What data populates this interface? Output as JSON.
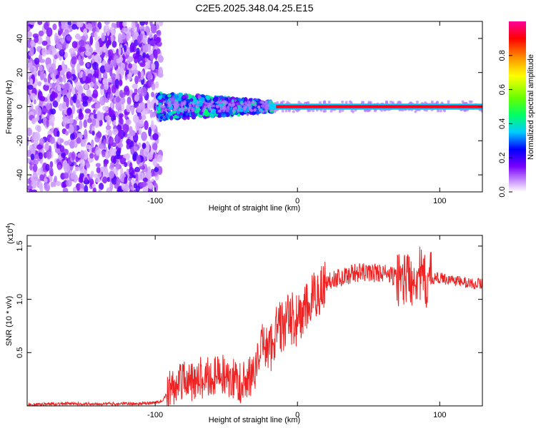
{
  "title": "C2E5.2025.348.04.25.E15",
  "chart_data": [
    {
      "type": "heatmap",
      "name": "spectrogram",
      "xlabel": "Height of straight line (km)",
      "ylabel": "Frequency (Hz)",
      "xlim": [
        -190,
        130
      ],
      "ylim": [
        -50,
        50
      ],
      "xticks": [
        -100,
        0,
        100
      ],
      "yticks": [
        -40,
        -20,
        0,
        20,
        40
      ],
      "tick_labels_x": [
        "-100",
        "0",
        "100"
      ],
      "tick_labels_y": [
        "-40",
        "-20",
        "0",
        "20",
        "40"
      ],
      "colorbar": {
        "label": "Normalized spectral amplitude",
        "range": [
          0,
          1
        ],
        "ticks": [
          "0.0",
          "0.2",
          "0.4",
          "0.6",
          "0.8"
        ],
        "colors": [
          "#ffffff",
          "#cc99ff",
          "#7700ff",
          "#0000ff",
          "#00ccff",
          "#00ff66",
          "#66ff00",
          "#ffff00",
          "#ff9900",
          "#ff0000",
          "#ff0099"
        ]
      },
      "regions": [
        {
          "x": [
            -190,
            -96
          ],
          "freq": [
            -50,
            50
          ],
          "level": "low",
          "description_value": 0.1
        },
        {
          "x": [
            -96,
            -20
          ],
          "freq": [
            -8,
            8
          ],
          "level": "mid",
          "description_value": 0.3
        },
        {
          "x": [
            -20,
            130
          ],
          "freq": [
            -1.5,
            1.5
          ],
          "level": "high",
          "description_value": 0.95
        }
      ]
    },
    {
      "type": "line",
      "name": "snr",
      "xlabel": "Height of straight line (km)",
      "ylabel": "SNR (10 * v/v)",
      "multiplier_label": "(x10",
      "multiplier_exp": "4",
      "multiplier_close": ")",
      "xlim": [
        -190,
        130
      ],
      "ylim": [
        0,
        1.6
      ],
      "xticks": [
        -100,
        0,
        100
      ],
      "yticks": [
        0.5,
        1.0,
        1.5
      ],
      "tick_labels_x": [
        "-100",
        "0",
        "100"
      ],
      "tick_labels_y": [
        "0.5",
        "1.0",
        "1.5"
      ],
      "color": "#ee2222",
      "series": [
        {
          "name": "SNR",
          "x": [
            -190,
            -170,
            -150,
            -130,
            -110,
            -100,
            -95,
            -90,
            -85,
            -80,
            -75,
            -70,
            -65,
            -60,
            -55,
            -50,
            -45,
            -40,
            -35,
            -30,
            -25,
            -22,
            -20,
            -15,
            -10,
            -5,
            0,
            5,
            10,
            15,
            20,
            25,
            30,
            40,
            50,
            60,
            70,
            80,
            85,
            90,
            95,
            100,
            110,
            120,
            130
          ],
          "y": [
            0.01,
            0.02,
            0.02,
            0.02,
            0.02,
            0.03,
            0.05,
            0.15,
            0.2,
            0.25,
            0.22,
            0.28,
            0.25,
            0.3,
            0.27,
            0.3,
            0.25,
            0.22,
            0.26,
            0.3,
            0.6,
            0.55,
            0.5,
            0.72,
            0.75,
            0.82,
            0.8,
            0.88,
            0.98,
            1.08,
            1.15,
            1.2,
            1.2,
            1.25,
            1.25,
            1.25,
            1.2,
            1.2,
            1.25,
            1.15,
            1.2,
            1.2,
            1.18,
            1.15,
            1.15
          ]
        }
      ]
    }
  ]
}
